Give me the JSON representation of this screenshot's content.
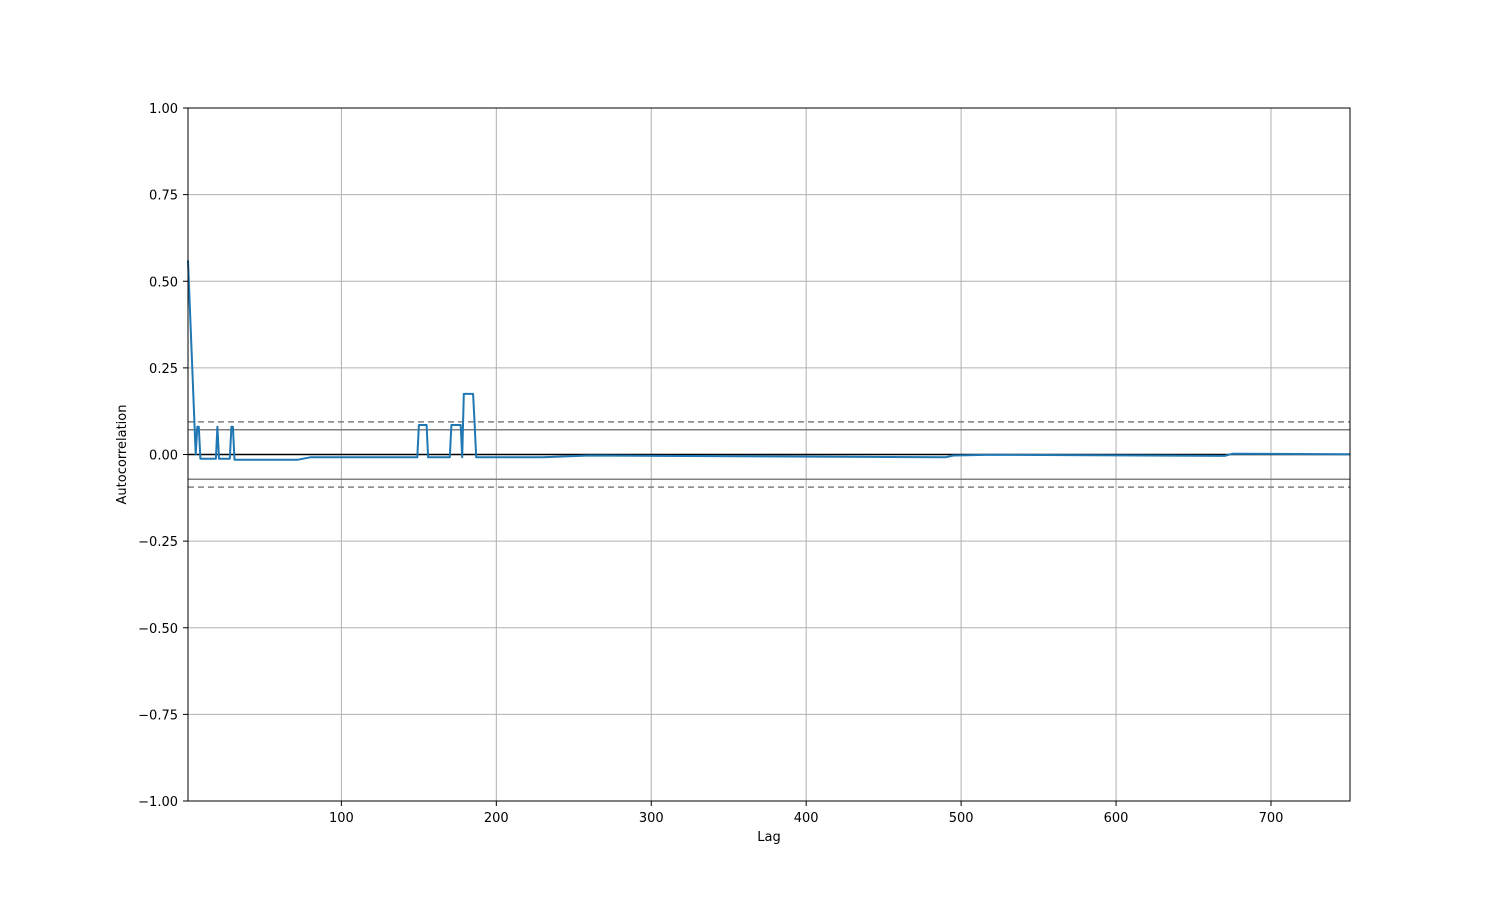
{
  "chart_data": {
    "type": "line",
    "title": "",
    "xlabel": "Lag",
    "ylabel": "Autocorrelation",
    "xlim": [
      1,
      751
    ],
    "ylim": [
      -1.0,
      1.0
    ],
    "grid": true,
    "x_ticks": [
      100,
      200,
      300,
      400,
      500,
      600,
      700
    ],
    "x_tick_labels": [
      "100",
      "200",
      "300",
      "400",
      "500",
      "600",
      "700"
    ],
    "y_ticks": [
      1.0,
      0.75,
      0.5,
      0.25,
      0.0,
      -0.25,
      -0.5,
      -0.75,
      -1.0
    ],
    "y_tick_labels": [
      "1.00",
      "0.75",
      "0.50",
      "0.25",
      "0.00",
      "−0.25",
      "−0.50",
      "−0.75",
      "−1.00"
    ],
    "reference_lines": [
      {
        "y": 0.0,
        "style": "solid",
        "color": "#000000"
      },
      {
        "y": 0.0715,
        "style": "solid",
        "color": "#808080"
      },
      {
        "y": -0.0715,
        "style": "solid",
        "color": "#808080"
      },
      {
        "y": 0.0942,
        "style": "dashed",
        "color": "#808080"
      },
      {
        "y": -0.0942,
        "style": "dashed",
        "color": "#808080"
      }
    ],
    "series": [
      {
        "color": "#1f77b4",
        "x": [
          1,
          6,
          7,
          8,
          9,
          10,
          19,
          20,
          21,
          28,
          29,
          30,
          31,
          72,
          80,
          149,
          150,
          155,
          156,
          170,
          171,
          177,
          178,
          179,
          180,
          185,
          186,
          187,
          230,
          260,
          490,
          495,
          520,
          670,
          675,
          751
        ],
        "y": [
          0.56,
          0.0,
          0.08,
          0.08,
          -0.012,
          -0.012,
          -0.012,
          0.08,
          -0.012,
          -0.012,
          0.08,
          0.08,
          -0.015,
          -0.015,
          -0.008,
          -0.008,
          0.085,
          0.085,
          -0.008,
          -0.008,
          0.085,
          0.085,
          -0.008,
          0.175,
          0.175,
          0.175,
          0.09,
          -0.008,
          -0.008,
          -0.003,
          -0.008,
          -0.003,
          -0.001,
          -0.004,
          0.002,
          0.001
        ]
      }
    ]
  }
}
